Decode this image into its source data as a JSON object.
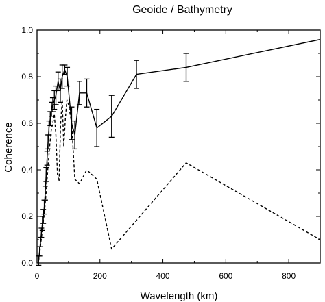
{
  "chart_data": {
    "type": "line",
    "title": "Geoide / Bathymetry",
    "xlabel": "Wavelength (km)",
    "ylabel": "Coherence",
    "xlim": [
      0,
      900
    ],
    "ylim": [
      0,
      1
    ],
    "x_ticks": [
      0,
      200,
      400,
      600,
      800
    ],
    "x_tick_labels": [
      "0",
      "200",
      "400",
      "600",
      "800"
    ],
    "y_ticks": [
      0,
      0.2,
      0.4,
      0.6,
      0.8,
      1.0
    ],
    "y_tick_labels": [
      "0.0",
      "0.2",
      "0.4",
      "0.6",
      "0.8",
      "1.0"
    ],
    "grid": false,
    "series": [
      {
        "style": "solid",
        "color": "#000000",
        "x": [
          5,
          8,
          11,
          14,
          17,
          20,
          23,
          26,
          29,
          32,
          35,
          38,
          42,
          46,
          50,
          55,
          60,
          67,
          74,
          80,
          88,
          96,
          110,
          120,
          135,
          158,
          190,
          237,
          316,
          474,
          900
        ],
        "y": [
          0.01,
          0.05,
          0.09,
          0.13,
          0.17,
          0.2,
          0.24,
          0.3,
          0.38,
          0.45,
          0.52,
          0.58,
          0.62,
          0.66,
          0.68,
          0.7,
          0.72,
          0.78,
          0.74,
          0.8,
          0.83,
          0.8,
          0.6,
          0.55,
          0.73,
          0.73,
          0.58,
          0.63,
          0.81,
          0.84,
          0.96
        ],
        "error": [
          0.02,
          0.02,
          0.02,
          0.02,
          0.03,
          0.03,
          0.03,
          0.03,
          0.03,
          0.03,
          0.03,
          0.03,
          0.03,
          0.03,
          0.03,
          0.04,
          0.04,
          0.04,
          0.05,
          0.05,
          0.02,
          0.04,
          0.07,
          0.06,
          0.05,
          0.06,
          0.08,
          0.09,
          0.06,
          0.06,
          0
        ]
      },
      {
        "style": "dashed",
        "color": "#000000",
        "x": [
          5,
          10,
          15,
          20,
          25,
          30,
          35,
          40,
          45,
          50,
          55,
          60,
          65,
          70,
          75,
          80,
          85,
          90,
          95,
          100,
          110,
          120,
          135,
          158,
          190,
          237,
          474,
          900
        ],
        "y": [
          0.01,
          0.06,
          0.12,
          0.18,
          0.24,
          0.32,
          0.42,
          0.5,
          0.57,
          0.6,
          0.64,
          0.55,
          0.38,
          0.35,
          0.6,
          0.7,
          0.5,
          0.62,
          0.7,
          0.68,
          0.6,
          0.36,
          0.34,
          0.4,
          0.36,
          0.06,
          0.43,
          0.1
        ]
      }
    ]
  }
}
